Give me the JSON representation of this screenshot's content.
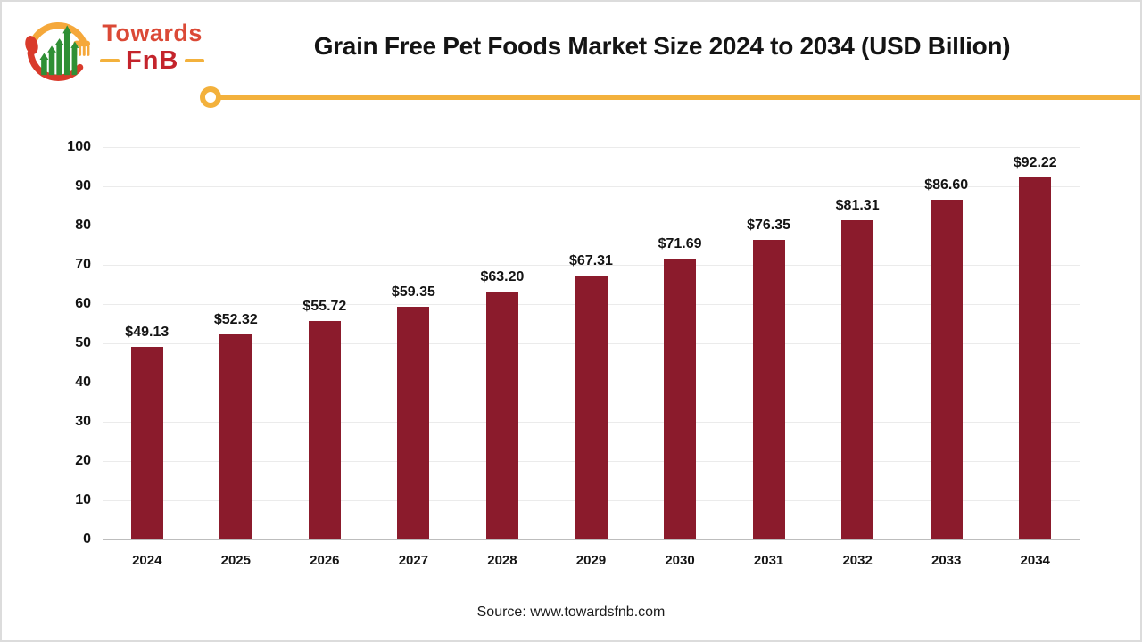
{
  "brand": {
    "name_top": "Towards",
    "name_bottom": "FnB"
  },
  "header": {
    "title": "Grain Free Pet Foods Market Size 2024 to 2034 (USD Billion)"
  },
  "footer": {
    "source": "Source: www.towardsfnb.com"
  },
  "colors": {
    "bar": "#8B1B2C",
    "accent_gold": "#F3B13C",
    "brand_red": "#DB4936",
    "brand_dark_red": "#C4242C",
    "logo_green": "#2F8F35"
  },
  "chart_data": {
    "type": "bar",
    "title": "Grain Free Pet Foods Market Size 2024 to 2034 (USD Billion)",
    "categories": [
      "2024",
      "2025",
      "2026",
      "2027",
      "2028",
      "2029",
      "2030",
      "2031",
      "2032",
      "2033",
      "2034"
    ],
    "values": [
      49.13,
      52.32,
      55.72,
      59.35,
      63.2,
      67.31,
      71.69,
      76.35,
      81.31,
      86.6,
      92.22
    ],
    "value_labels": [
      "$49.13",
      "$52.32",
      "$55.72",
      "$59.35",
      "$63.20",
      "$67.31",
      "$71.69",
      "$76.35",
      "$81.31",
      "$86.60",
      "$92.22"
    ],
    "xlabel": "",
    "ylabel": "",
    "ylim": [
      0,
      100
    ],
    "ytick_step": 10,
    "grid": true,
    "legend_position": "none",
    "bar_color": "#8B1B2C"
  }
}
